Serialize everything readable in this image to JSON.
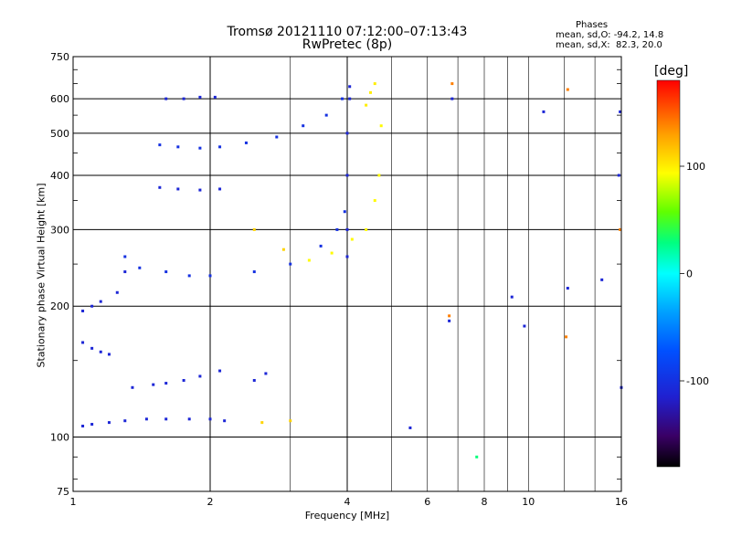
{
  "title": {
    "line1": "Tromsø 20121110 07:12:00–07:13:43",
    "line2": "RwPretec (8p)"
  },
  "phase_box": {
    "title": "Phases",
    "line_o": "mean, sd,O: -94.2, 14.8",
    "line_x": "mean, sd,X:  82.3, 20.0"
  },
  "colorbar": {
    "unit": "[deg]",
    "ticks": [
      "100",
      "0",
      "-100"
    ]
  },
  "chart_data": {
    "type": "scatter",
    "xlabel": "Frequency [MHz]",
    "ylabel": "Stationary phase Virtual Height [km]",
    "x_scale": "log",
    "y_scale": "log",
    "xlim": [
      1,
      16
    ],
    "ylim": [
      75,
      750
    ],
    "xticks": [
      1,
      2,
      4,
      6,
      8,
      10,
      16
    ],
    "xtick_labels": [
      "1",
      "2",
      "4",
      "6",
      "8",
      "10",
      "16"
    ],
    "yticks": [
      75,
      100,
      200,
      300,
      400,
      500,
      600,
      750
    ],
    "ytick_labels": [
      "75",
      "100",
      "200",
      "300",
      "400",
      "500",
      "600",
      "750"
    ],
    "grid": true,
    "colorbar_range": [
      -180,
      180
    ],
    "color_scale": "phase [deg]",
    "series": [
      {
        "x": [
          1.05,
          1.1,
          1.2,
          1.3,
          1.45,
          1.6,
          1.8,
          2.0,
          2.15
        ],
        "y": [
          106,
          107,
          108,
          109,
          110,
          110,
          110,
          110,
          109
        ],
        "phase": -110
      },
      {
        "x": [
          1.35,
          1.5,
          1.6,
          1.75,
          1.9,
          2.1,
          2.5,
          2.65
        ],
        "y": [
          130,
          132,
          133,
          135,
          138,
          142,
          135,
          140
        ],
        "phase": -110
      },
      {
        "x": [
          1.05,
          1.1,
          1.15,
          1.2
        ],
        "y": [
          165,
          160,
          157,
          155
        ],
        "phase": -110
      },
      {
        "x": [
          1.05,
          1.1,
          1.15,
          1.25,
          1.3
        ],
        "y": [
          195,
          200,
          205,
          215,
          240
        ],
        "phase": -110
      },
      {
        "x": [
          1.3,
          1.4,
          1.6,
          1.8,
          2.0,
          2.5,
          3.0,
          3.5,
          3.8,
          3.95
        ],
        "y": [
          260,
          245,
          240,
          235,
          235,
          240,
          250,
          275,
          300,
          330
        ],
        "phase": -100
      },
      {
        "x": [
          1.55,
          1.7,
          1.9,
          2.1
        ],
        "y": [
          375,
          372,
          370,
          372
        ],
        "phase": -110
      },
      {
        "x": [
          1.55,
          1.7,
          1.9,
          2.1,
          2.4,
          2.8,
          3.2,
          3.6,
          3.9
        ],
        "y": [
          470,
          465,
          462,
          465,
          475,
          490,
          520,
          550,
          600
        ],
        "phase": -100
      },
      {
        "x": [
          1.6,
          1.75,
          1.9,
          2.05
        ],
        "y": [
          600,
          600,
          605,
          605
        ],
        "phase": -110
      },
      {
        "x": [
          4.0,
          4.0,
          4.0,
          4.0,
          4.05,
          4.05
        ],
        "y": [
          260,
          300,
          400,
          500,
          600,
          640
        ],
        "phase": -110
      },
      {
        "x": [
          3.3,
          3.7,
          4.1,
          4.4,
          4.6,
          4.7,
          4.75
        ],
        "y": [
          255,
          265,
          285,
          300,
          350,
          400,
          520
        ],
        "phase": 95
      },
      {
        "x": [
          4.4,
          4.5,
          4.6
        ],
        "y": [
          580,
          620,
          650
        ],
        "phase": 100
      },
      {
        "x": [
          2.5,
          2.9
        ],
        "y": [
          300,
          270
        ],
        "phase": 110
      },
      {
        "x": [
          2.6,
          3.0
        ],
        "y": [
          108,
          109
        ],
        "phase": 110
      },
      {
        "x": [
          5.5,
          6.7,
          6.8,
          9.2,
          9.8,
          10.8,
          12.2,
          14.5,
          15.8,
          15.9,
          16.0
        ],
        "y": [
          105,
          185,
          600,
          210,
          180,
          560,
          220,
          230,
          400,
          560,
          130
        ],
        "phase": -110
      },
      {
        "x": [
          6.7,
          6.8,
          12.1,
          12.2,
          15.9
        ],
        "y": [
          190,
          650,
          170,
          630,
          300
        ],
        "phase": 140
      },
      {
        "x": [
          7.7
        ],
        "y": [
          90
        ],
        "phase": 30
      }
    ]
  }
}
